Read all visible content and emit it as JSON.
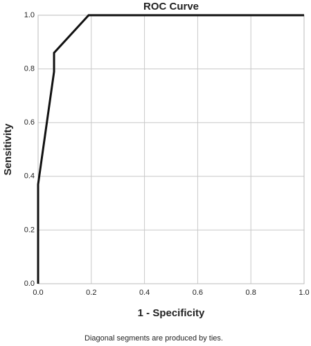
{
  "chart_data": {
    "type": "line",
    "title": "ROC Curve",
    "x_label": "1 - Specificity",
    "y_label": "Sensitivity",
    "note": "Diagonal segments are produced by ties.",
    "x": [
      0,
      0,
      0.06,
      0.06,
      0.19,
      1.0
    ],
    "series": [
      {
        "name": "ROC",
        "color": "#111111",
        "values": [
          0,
          0.37,
          0.79,
          0.86,
          1.0,
          1.0
        ]
      }
    ],
    "xlim": [
      0,
      1
    ],
    "ylim": [
      0,
      1
    ],
    "xticks": [
      {
        "value": 0,
        "label": "0.0"
      },
      0.2,
      0.4,
      0.6,
      0.8,
      {
        "value": 1,
        "label": "1.0"
      }
    ],
    "yticks": [
      {
        "value": 0,
        "label": "0.0"
      },
      0.2,
      0.4,
      0.6,
      0.8,
      {
        "value": 1,
        "label": "1.0"
      }
    ],
    "grid": true,
    "legend": false
  }
}
